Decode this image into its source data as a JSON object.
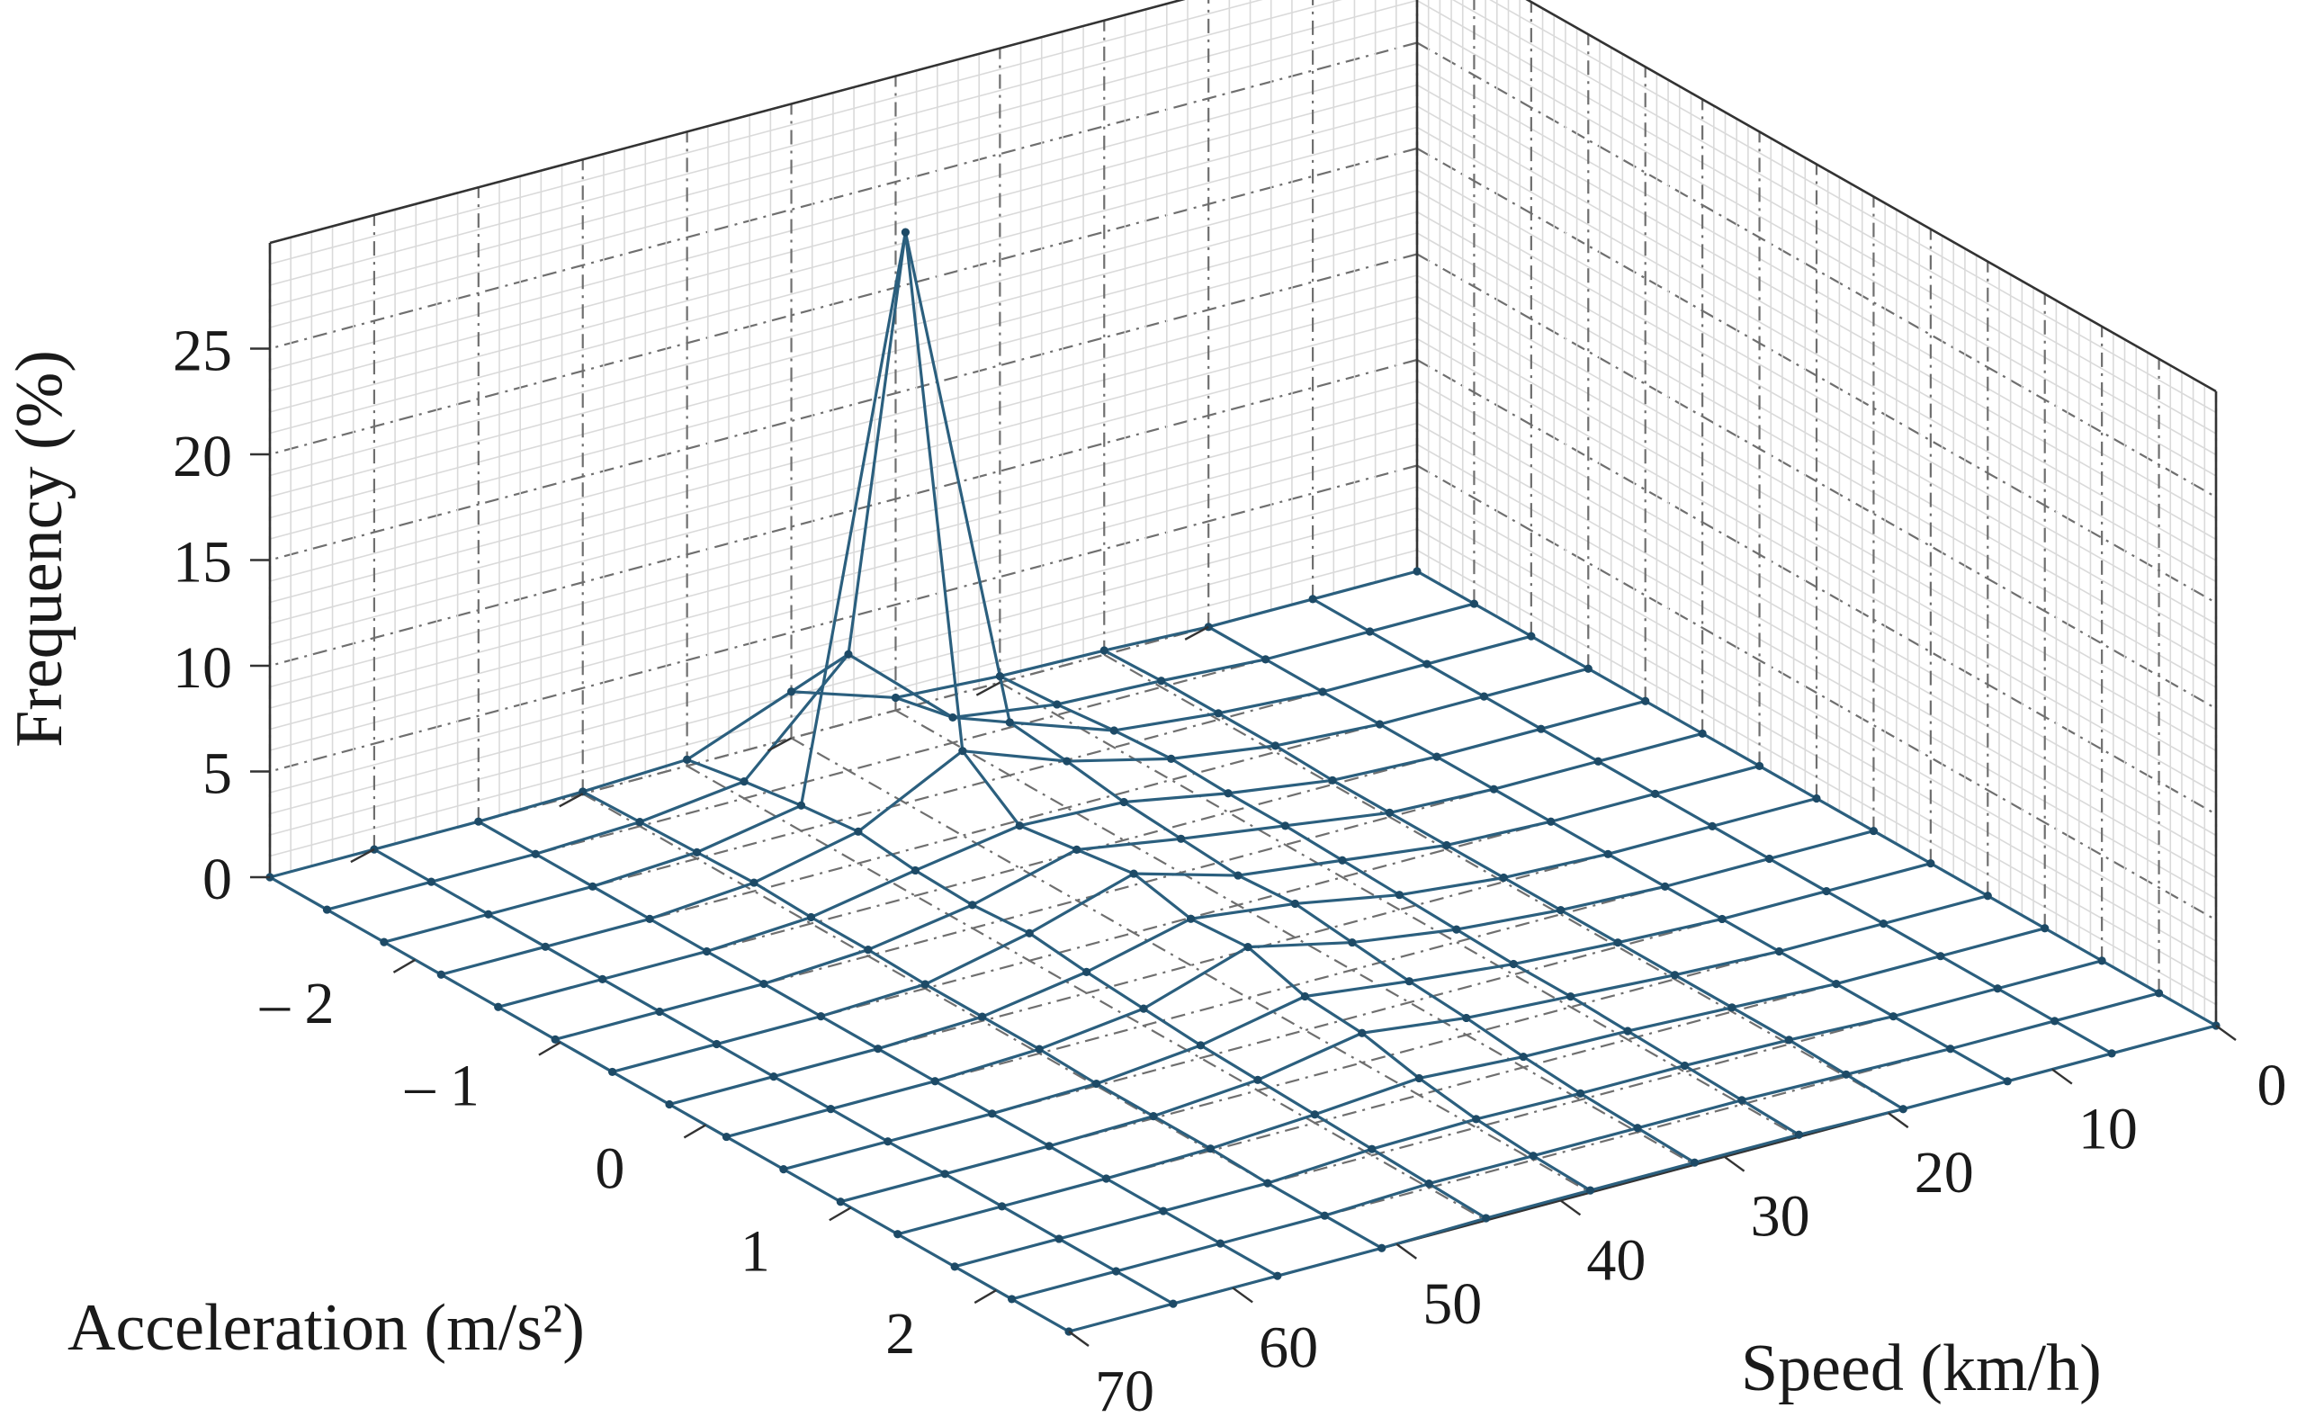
{
  "chart_data": {
    "type": "surface",
    "zlabel": "Frequency (%)",
    "ylabel": "Acceleration (m/s²)",
    "xlabel": "Speed (km/h)",
    "z_ticks": [
      "0",
      "5",
      "10",
      "15",
      "20",
      "25"
    ],
    "acc_tick_labels": [
      "– 2",
      "– 1",
      "0",
      "1",
      "2"
    ],
    "acc_tick_values": [
      -2,
      -1,
      0,
      1,
      2
    ],
    "speed_tick_labels": [
      "0",
      "10",
      "20",
      "30",
      "40",
      "50",
      "60",
      "70"
    ],
    "speed_tick_values": [
      0,
      10,
      20,
      30,
      40,
      50,
      60,
      70
    ],
    "speed_grid": [
      0,
      5,
      10,
      15,
      20,
      25,
      30,
      35,
      40,
      45,
      50,
      55,
      60,
      65,
      70
    ],
    "acc_grid": [
      -3.0,
      -2.5,
      -2.0,
      -1.5,
      -1.0,
      -0.5,
      0.0,
      0.5,
      1.0,
      1.5,
      2.0,
      2.5
    ],
    "zlim": [
      0,
      30
    ],
    "grid": true,
    "colors": {
      "mesh": "#2b5f7e",
      "node": "#1d4a66",
      "axis": "#333333",
      "grid_major": "#6f6f6f",
      "grid_minor": "#dadada"
    },
    "frequency": [
      [
        0,
        0,
        0,
        0,
        0,
        0,
        0,
        0,
        0,
        0,
        0,
        0,
        0,
        0,
        0
      ],
      [
        0,
        0,
        0,
        0,
        0,
        0,
        0,
        0,
        0,
        0,
        0,
        0,
        0,
        0,
        0
      ],
      [
        0,
        0,
        0,
        0,
        0,
        0,
        0,
        0,
        0,
        0,
        0,
        0,
        0,
        0,
        0
      ],
      [
        0.2,
        0.3,
        0.3,
        0.3,
        0.2,
        0.2,
        0.2,
        0.2,
        0.2,
        0.2,
        0.2,
        0.2,
        0.2,
        0.1,
        0
      ],
      [
        0.3,
        0.5,
        0.8,
        1.0,
        0.9,
        0.9,
        0.8,
        0.7,
        0.6,
        0.5,
        0.5,
        0.4,
        0.3,
        0.2,
        0.1
      ],
      [
        0.6,
        1.2,
        2.5,
        2.2,
        1.8,
        1.6,
        1.4,
        1.6,
        1.3,
        1.0,
        0.8,
        0.5,
        0.3,
        0.2,
        0.1
      ],
      [
        2.2,
        5.5,
        27.0,
        4.0,
        2.0,
        2.4,
        2.8,
        2.2,
        2.4,
        1.6,
        1.4,
        0.8,
        0.4,
        0.2,
        0.1
      ],
      [
        0.3,
        0.8,
        1.2,
        1.5,
        1.2,
        1.1,
        1.3,
        1.0,
        0.8,
        0.6,
        0.5,
        0.4,
        0.3,
        0.2,
        0.1
      ],
      [
        0.1,
        0.2,
        0.3,
        0.4,
        0.3,
        0.3,
        0.2,
        0.2,
        0.2,
        0.1,
        0.1,
        0.1,
        0,
        0,
        0
      ],
      [
        0,
        0,
        0,
        0,
        0,
        0,
        0,
        0,
        0,
        0,
        0,
        0,
        0,
        0,
        0
      ],
      [
        0,
        0,
        0,
        0,
        0,
        0,
        0,
        0,
        0,
        0,
        0,
        0,
        0,
        0,
        0
      ],
      [
        0,
        0,
        0,
        0,
        0,
        0,
        0,
        0,
        0,
        0,
        0,
        0,
        0,
        0,
        0
      ]
    ]
  }
}
